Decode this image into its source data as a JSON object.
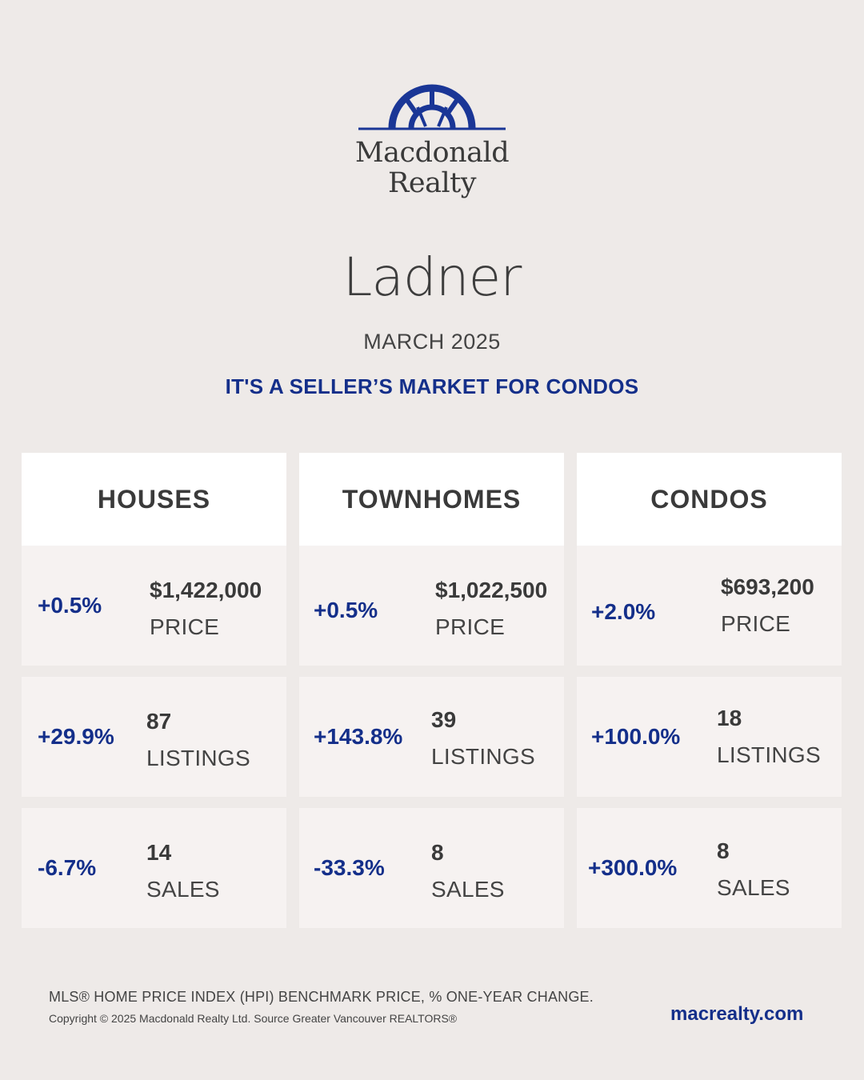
{
  "brand": {
    "logo_line1": "Macdonald",
    "logo_line2": "Realty",
    "accent_color": "#142f8a"
  },
  "title": "Ladner",
  "month": "MARCH 2025",
  "headline": "IT'S A SELLER’S MARKET FOR CONDOS",
  "columns": [
    {
      "heading": "HOUSES",
      "stats": [
        {
          "change": "+0.5%",
          "value": "$1,422,000",
          "label": "PRICE"
        },
        {
          "change": "+29.9%",
          "value": "87",
          "label": "LISTINGS"
        },
        {
          "change": "-6.7%",
          "value": "14",
          "label": "SALES"
        }
      ]
    },
    {
      "heading": "TOWNHOMES",
      "stats": [
        {
          "change": "+0.5%",
          "value": "$1,022,500",
          "label": "PRICE"
        },
        {
          "change": "+143.8%",
          "value": "39",
          "label": "LISTINGS"
        },
        {
          "change": "-33.3%",
          "value": "8",
          "label": "SALES"
        }
      ]
    },
    {
      "heading": "CONDOS",
      "stats": [
        {
          "change": "+2.0%",
          "value": "$693,200",
          "label": "PRICE"
        },
        {
          "change": "+100.0%",
          "value": "18",
          "label": "LISTINGS"
        },
        {
          "change": "+300.0%",
          "value": "8",
          "label": "SALES"
        }
      ]
    }
  ],
  "footer": {
    "note": "MLS® HOME PRICE INDEX (HPI) BENCHMARK PRICE, % ONE-YEAR CHANGE.",
    "copyright": "Copyright © 2025 Macdonald Realty Ltd. Source Greater Vancouver REALTORS®",
    "website": "macrealty.com"
  }
}
